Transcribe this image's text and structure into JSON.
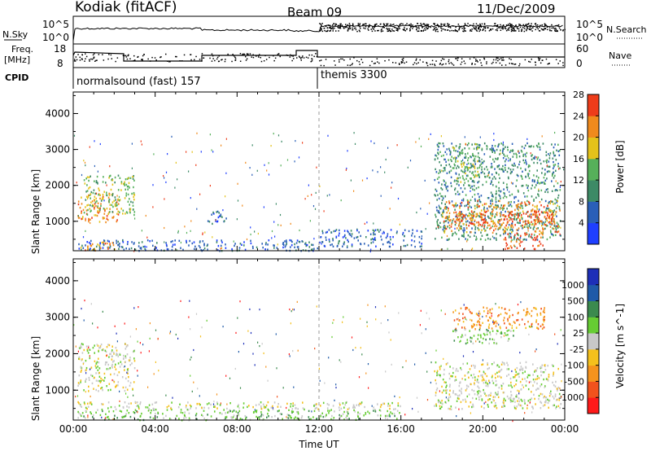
{
  "header": {
    "station": "Kodiak (fitACF)",
    "beam": "Beam 09",
    "date": "11/Dec/2009"
  },
  "summary_panel": {
    "left_labels": {
      "nsky": "N.Sky",
      "freq_line1": "Freq.",
      "freq_line2": "[MHz]",
      "cpid": "CPID"
    },
    "right_labels": {
      "nsearch": "N.Search",
      "nave": "Nave"
    },
    "left_ticks_top": [
      "10^5",
      "10^0"
    ],
    "right_ticks_top": [
      "10^5",
      "10^0"
    ],
    "left_ticks_freq": [
      "18",
      "8"
    ],
    "right_ticks_nave": [
      "60",
      "0"
    ],
    "cpid_segments": [
      {
        "label": "normalsound (fast) 157",
        "start_hour": 0
      },
      {
        "label": "themis 3300",
        "start_hour": 12
      }
    ]
  },
  "chart_data": [
    {
      "type": "heatmap",
      "title": "",
      "xlabel": "Time UT",
      "ylabel": "Slant Range [km]",
      "x_ticks": [
        "00:00",
        "04:00",
        "08:00",
        "12:00",
        "16:00",
        "20:00",
        "00:00"
      ],
      "x_range_hours": [
        0,
        24
      ],
      "y_ticks": [
        1000,
        2000,
        3000,
        4000
      ],
      "ylim": [
        180,
        4600
      ],
      "colorbar": {
        "label": "Power [dB]",
        "ticks": [
          "4",
          "8",
          "12",
          "16",
          "20",
          "24",
          "28"
        ],
        "colors": [
          "#1f3fff",
          "#2a5fb8",
          "#3d8a66",
          "#56b05a",
          "#e4c21a",
          "#f08a1c",
          "#ee3c1a"
        ]
      },
      "regions": [
        {
          "t0": 0.2,
          "t1": 2.2,
          "r0": 1000,
          "r1": 1800,
          "level": 5
        },
        {
          "t0": 0.5,
          "t1": 3.0,
          "r0": 1200,
          "r1": 2300,
          "level": 3
        },
        {
          "t0": 0.2,
          "t1": 12.0,
          "r0": 200,
          "r1": 500,
          "level": 1
        },
        {
          "t0": 0.2,
          "t1": 2.0,
          "r0": 200,
          "r1": 450,
          "level": 5
        },
        {
          "t0": 6.5,
          "t1": 7.5,
          "r0": 900,
          "r1": 1300,
          "level": 1
        },
        {
          "t0": 12.0,
          "t1": 17.0,
          "r0": 300,
          "r1": 800,
          "level": 1
        },
        {
          "t0": 17.6,
          "t1": 23.8,
          "r0": 500,
          "r1": 3200,
          "level": 2
        },
        {
          "t0": 18.0,
          "t1": 23.8,
          "r0": 700,
          "r1": 1600,
          "level": 5
        },
        {
          "t0": 18.6,
          "t1": 23.4,
          "r0": 900,
          "r1": 1300,
          "level": 6
        },
        {
          "t0": 21.0,
          "t1": 23.0,
          "r0": 250,
          "r1": 700,
          "level": 6
        },
        {
          "t0": 18.5,
          "t1": 19.8,
          "r0": 2000,
          "r1": 3200,
          "level": 3
        }
      ]
    },
    {
      "type": "heatmap",
      "title": "",
      "xlabel": "Time UT",
      "ylabel": "Slant Range [km]",
      "x_ticks": [
        "00:00",
        "04:00",
        "08:00",
        "12:00",
        "16:00",
        "20:00",
        "00:00"
      ],
      "x_range_hours": [
        0,
        24
      ],
      "y_ticks": [
        1000,
        2000,
        3000,
        4000
      ],
      "ylim": [
        180,
        4600
      ],
      "colorbar": {
        "label": "Velocity [m s^-1]",
        "ticks": [
          "-1000",
          "-500",
          "-100",
          "-25",
          "25",
          "100",
          "500",
          "1000"
        ],
        "colors": [
          "#ff1a1a",
          "#f2521c",
          "#f5931d",
          "#f4c01c",
          "#c8c8c8",
          "#66cc33",
          "#3b8a4e",
          "#1f5aa8",
          "#1d2fb8"
        ]
      },
      "regions": [
        {
          "t0": 0.2,
          "t1": 3.0,
          "r0": 1000,
          "r1": 2300,
          "level": 4
        },
        {
          "t0": 0.2,
          "t1": 16.0,
          "r0": 200,
          "r1": 500,
          "level": 5
        },
        {
          "t0": 0.2,
          "t1": 16.0,
          "r0": 500,
          "r1": 700,
          "level": 4
        },
        {
          "t0": 17.6,
          "t1": 23.8,
          "r0": 500,
          "r1": 1800,
          "level": 4
        },
        {
          "t0": 18.5,
          "t1": 23.0,
          "r0": 2700,
          "r1": 3300,
          "level": 2
        },
        {
          "t0": 18.5,
          "t1": 21.5,
          "r0": 2300,
          "r1": 2700,
          "level": 5
        }
      ]
    }
  ]
}
